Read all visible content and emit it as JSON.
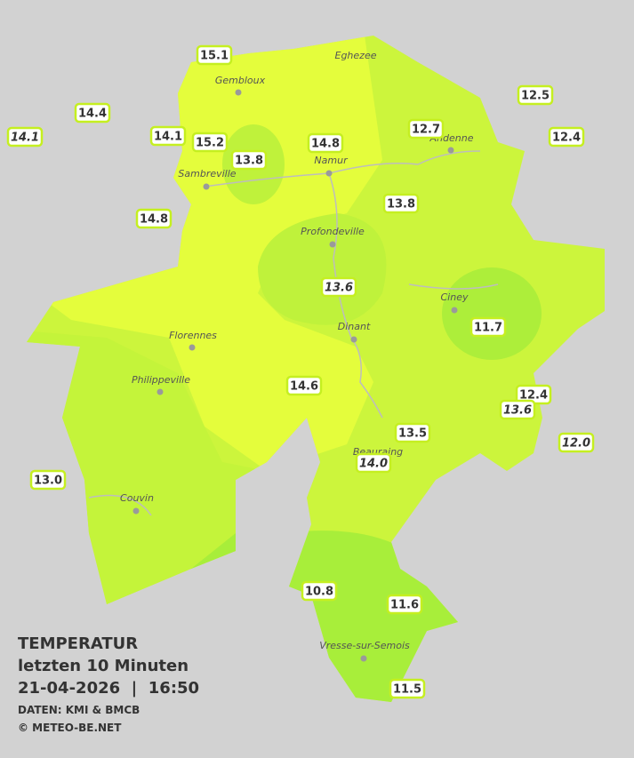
{
  "title": {
    "heading": "TEMPERATUR",
    "period": "letzten 10 Minuten",
    "datetime": "21-04-2026  |  16:50",
    "source": "DATEN: KMI & BMCB",
    "copyright": "© METEO-BE.NET"
  },
  "towns": [
    "Eghezee",
    "Gembloux",
    "Andenne",
    "Namur",
    "Sambreville",
    "Profondeville",
    "Ciney",
    "Florennes",
    "Dinant",
    "Philippeville",
    "Beauraing",
    "Couvin",
    "Vresse-sur-Semois"
  ],
  "stations": [
    {
      "label": "15.1"
    },
    {
      "label": "14.4"
    },
    {
      "label": "14.1",
      "italic": true
    },
    {
      "label": "14.1"
    },
    {
      "label": "15.2"
    },
    {
      "label": "13.8"
    },
    {
      "label": "14.8"
    },
    {
      "label": "12.7"
    },
    {
      "label": "12.5"
    },
    {
      "label": "12.4"
    },
    {
      "label": "14.8"
    },
    {
      "label": "13.8"
    },
    {
      "label": "13.6",
      "italic": true
    },
    {
      "label": "11.7"
    },
    {
      "label": "14.6"
    },
    {
      "label": "12.4"
    },
    {
      "label": "13.6",
      "italic": true
    },
    {
      "label": "13.5"
    },
    {
      "label": "12.0",
      "italic": true
    },
    {
      "label": "14.0",
      "italic": true
    },
    {
      "label": "13.0"
    },
    {
      "label": "10.8"
    },
    {
      "label": "11.6"
    },
    {
      "label": "11.5"
    }
  ]
}
